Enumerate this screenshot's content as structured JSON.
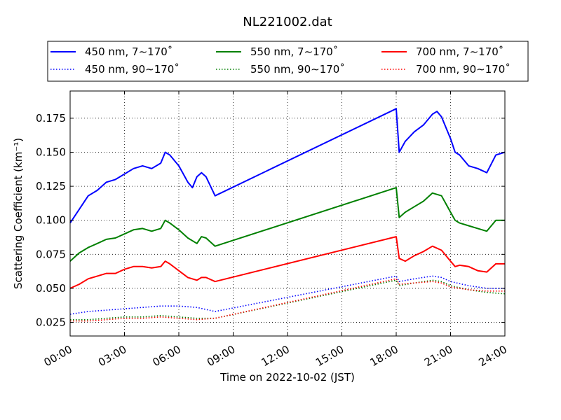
{
  "chart_data": {
    "type": "line",
    "title": "NL221002.dat",
    "xlabel": "Time on 2022-10-02 (JST)",
    "ylabel": "Scattering Coefficient (km⁻¹)",
    "xlim_hours": [
      0,
      24
    ],
    "ylim": [
      0.015,
      0.195
    ],
    "x_ticks": [
      "00:00",
      "03:00",
      "06:00",
      "09:00",
      "12:00",
      "15:00",
      "18:00",
      "21:00",
      "24:00"
    ],
    "y_ticks": [
      "0.025",
      "0.050",
      "0.075",
      "0.100",
      "0.125",
      "0.150",
      "0.175"
    ],
    "grid": true,
    "legend_position": "top, above plot (3 columns)",
    "series": [
      {
        "name": "450 nm, 7∼170˚",
        "color": "#0000ff",
        "style": "solid",
        "points": [
          [
            "00:00",
            0.098
          ],
          [
            "00:30",
            0.108
          ],
          [
            "01:00",
            0.118
          ],
          [
            "01:30",
            0.122
          ],
          [
            "02:00",
            0.128
          ],
          [
            "02:30",
            0.13
          ],
          [
            "03:00",
            0.134
          ],
          [
            "03:30",
            0.138
          ],
          [
            "04:00",
            0.14
          ],
          [
            "04:30",
            0.138
          ],
          [
            "05:00",
            0.142
          ],
          [
            "05:15",
            0.15
          ],
          [
            "05:30",
            0.148
          ],
          [
            "06:00",
            0.14
          ],
          [
            "06:30",
            0.128
          ],
          [
            "06:45",
            0.124
          ],
          [
            "07:00",
            0.132
          ],
          [
            "07:15",
            0.135
          ],
          [
            "07:30",
            0.132
          ],
          [
            "08:00",
            0.118
          ],
          [
            "18:00",
            0.182
          ],
          [
            "18:10",
            0.15
          ],
          [
            "18:30",
            0.158
          ],
          [
            "19:00",
            0.165
          ],
          [
            "19:30",
            0.17
          ],
          [
            "20:00",
            0.178
          ],
          [
            "20:15",
            0.18
          ],
          [
            "20:30",
            0.176
          ],
          [
            "21:00",
            0.16
          ],
          [
            "21:15",
            0.15
          ],
          [
            "21:30",
            0.148
          ],
          [
            "22:00",
            0.14
          ],
          [
            "22:30",
            0.138
          ],
          [
            "23:00",
            0.135
          ],
          [
            "23:30",
            0.148
          ],
          [
            "24:00",
            0.15
          ]
        ]
      },
      {
        "name": "450 nm, 90∼170˚",
        "color": "#0000ff",
        "style": "dotted",
        "points": [
          [
            "00:00",
            0.031
          ],
          [
            "01:00",
            0.033
          ],
          [
            "02:00",
            0.034
          ],
          [
            "03:00",
            0.035
          ],
          [
            "04:00",
            0.036
          ],
          [
            "05:00",
            0.037
          ],
          [
            "06:00",
            0.037
          ],
          [
            "07:00",
            0.036
          ],
          [
            "08:00",
            0.033
          ],
          [
            "18:00",
            0.059
          ],
          [
            "18:10",
            0.055
          ],
          [
            "19:00",
            0.057
          ],
          [
            "20:00",
            0.059
          ],
          [
            "20:30",
            0.058
          ],
          [
            "21:00",
            0.055
          ],
          [
            "22:00",
            0.052
          ],
          [
            "23:00",
            0.05
          ],
          [
            "24:00",
            0.05
          ]
        ]
      },
      {
        "name": "550 nm, 7∼170˚",
        "color": "#008000",
        "style": "solid",
        "points": [
          [
            "00:00",
            0.07
          ],
          [
            "00:30",
            0.076
          ],
          [
            "01:00",
            0.08
          ],
          [
            "01:30",
            0.083
          ],
          [
            "02:00",
            0.086
          ],
          [
            "02:30",
            0.087
          ],
          [
            "03:00",
            0.09
          ],
          [
            "03:30",
            0.093
          ],
          [
            "04:00",
            0.094
          ],
          [
            "04:30",
            0.092
          ],
          [
            "05:00",
            0.094
          ],
          [
            "05:15",
            0.1
          ],
          [
            "05:30",
            0.098
          ],
          [
            "06:00",
            0.093
          ],
          [
            "06:30",
            0.087
          ],
          [
            "07:00",
            0.083
          ],
          [
            "07:15",
            0.088
          ],
          [
            "07:30",
            0.087
          ],
          [
            "08:00",
            0.081
          ],
          [
            "18:00",
            0.124
          ],
          [
            "18:10",
            0.102
          ],
          [
            "18:30",
            0.106
          ],
          [
            "19:00",
            0.11
          ],
          [
            "19:30",
            0.114
          ],
          [
            "20:00",
            0.12
          ],
          [
            "20:30",
            0.118
          ],
          [
            "21:00",
            0.106
          ],
          [
            "21:15",
            0.1
          ],
          [
            "21:30",
            0.098
          ],
          [
            "22:00",
            0.096
          ],
          [
            "22:30",
            0.094
          ],
          [
            "23:00",
            0.092
          ],
          [
            "23:30",
            0.1
          ],
          [
            "24:00",
            0.1
          ]
        ]
      },
      {
        "name": "550 nm, 90∼170˚",
        "color": "#008000",
        "style": "dotted",
        "points": [
          [
            "00:00",
            0.027
          ],
          [
            "01:00",
            0.027
          ],
          [
            "02:00",
            0.028
          ],
          [
            "03:00",
            0.029
          ],
          [
            "04:00",
            0.029
          ],
          [
            "05:00",
            0.03
          ],
          [
            "06:00",
            0.029
          ],
          [
            "07:00",
            0.028
          ],
          [
            "08:00",
            0.028
          ],
          [
            "18:00",
            0.056
          ],
          [
            "18:10",
            0.052
          ],
          [
            "19:00",
            0.054
          ],
          [
            "20:00",
            0.056
          ],
          [
            "20:30",
            0.055
          ],
          [
            "21:00",
            0.052
          ],
          [
            "22:00",
            0.049
          ],
          [
            "23:00",
            0.047
          ],
          [
            "24:00",
            0.046
          ]
        ]
      },
      {
        "name": "700 nm, 7∼170˚",
        "color": "#ff0000",
        "style": "solid",
        "points": [
          [
            "00:00",
            0.05
          ],
          [
            "00:30",
            0.053
          ],
          [
            "01:00",
            0.057
          ],
          [
            "01:30",
            0.059
          ],
          [
            "02:00",
            0.061
          ],
          [
            "02:30",
            0.061
          ],
          [
            "03:00",
            0.064
          ],
          [
            "03:30",
            0.066
          ],
          [
            "04:00",
            0.066
          ],
          [
            "04:30",
            0.065
          ],
          [
            "05:00",
            0.066
          ],
          [
            "05:15",
            0.07
          ],
          [
            "05:30",
            0.068
          ],
          [
            "06:00",
            0.063
          ],
          [
            "06:30",
            0.058
          ],
          [
            "07:00",
            0.056
          ],
          [
            "07:15",
            0.058
          ],
          [
            "07:30",
            0.058
          ],
          [
            "08:00",
            0.055
          ],
          [
            "18:00",
            0.088
          ],
          [
            "18:10",
            0.072
          ],
          [
            "18:30",
            0.07
          ],
          [
            "19:00",
            0.074
          ],
          [
            "19:30",
            0.077
          ],
          [
            "20:00",
            0.081
          ],
          [
            "20:30",
            0.078
          ],
          [
            "21:00",
            0.07
          ],
          [
            "21:15",
            0.066
          ],
          [
            "21:30",
            0.067
          ],
          [
            "22:00",
            0.066
          ],
          [
            "22:30",
            0.063
          ],
          [
            "23:00",
            0.062
          ],
          [
            "23:30",
            0.068
          ],
          [
            "24:00",
            0.068
          ]
        ]
      },
      {
        "name": "700 nm, 90∼170˚",
        "color": "#ff0000",
        "style": "dotted",
        "points": [
          [
            "00:00",
            0.026
          ],
          [
            "01:00",
            0.026
          ],
          [
            "02:00",
            0.027
          ],
          [
            "03:00",
            0.028
          ],
          [
            "04:00",
            0.028
          ],
          [
            "05:00",
            0.029
          ],
          [
            "06:00",
            0.028
          ],
          [
            "07:00",
            0.027
          ],
          [
            "08:00",
            0.028
          ],
          [
            "18:00",
            0.057
          ],
          [
            "18:10",
            0.053
          ],
          [
            "19:00",
            0.054
          ],
          [
            "20:00",
            0.055
          ],
          [
            "20:30",
            0.054
          ],
          [
            "21:00",
            0.051
          ],
          [
            "22:00",
            0.049
          ],
          [
            "23:00",
            0.048
          ],
          [
            "24:00",
            0.048
          ]
        ]
      }
    ]
  }
}
